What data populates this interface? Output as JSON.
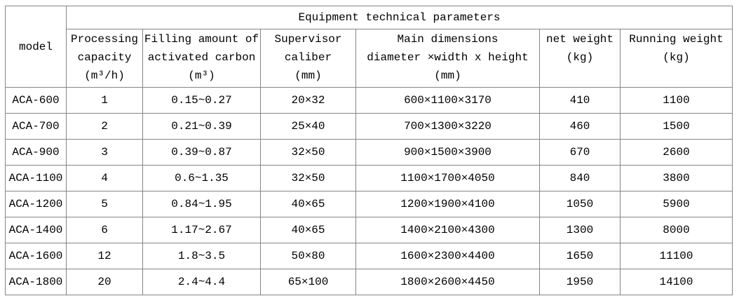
{
  "table": {
    "title": "Equipment technical parameters",
    "model_header": "model",
    "columns": [
      {
        "lines": [
          "Processing",
          "capacity",
          "(m³/h)"
        ]
      },
      {
        "lines": [
          "Filling amount of",
          "activated carbon",
          "(m³)"
        ]
      },
      {
        "lines": [
          "Supervisor",
          "caliber",
          "(mm)"
        ]
      },
      {
        "lines": [
          "Main dimensions",
          "diameter ×width x height",
          "(mm)"
        ]
      },
      {
        "lines": [
          "net weight",
          "(kg)"
        ]
      },
      {
        "lines": [
          "Running weight",
          "(kg)"
        ]
      }
    ],
    "rows": [
      [
        "ACA-600",
        "1",
        "0.15~0.27",
        "20×32",
        "600×1100×3170",
        "410",
        "1100"
      ],
      [
        "ACA-700",
        "2",
        "0.21~0.39",
        "25×40",
        "700×1300×3220",
        "460",
        "1500"
      ],
      [
        "ACA-900",
        "3",
        "0.39~0.87",
        "32×50",
        "900×1500×3900",
        "670",
        "2600"
      ],
      [
        "ACA-1100",
        "4",
        "0.6~1.35",
        "32×50",
        "1100×1700×4050",
        "840",
        "3800"
      ],
      [
        "ACA-1200",
        "5",
        "0.84~1.95",
        "40×65",
        "1200×1900×4100",
        "1050",
        "5900"
      ],
      [
        "ACA-1400",
        "6",
        "1.17~2.67",
        "40×65",
        "1400×2100×4300",
        "1300",
        "8000"
      ],
      [
        "ACA-1600",
        "12",
        "1.8~3.5",
        "50×80",
        "1600×2300×4400",
        "1650",
        "11100"
      ],
      [
        "ACA-1800",
        "20",
        "2.4~4.4",
        "65×100",
        "1800×2600×4450",
        "1950",
        "14100"
      ]
    ]
  }
}
